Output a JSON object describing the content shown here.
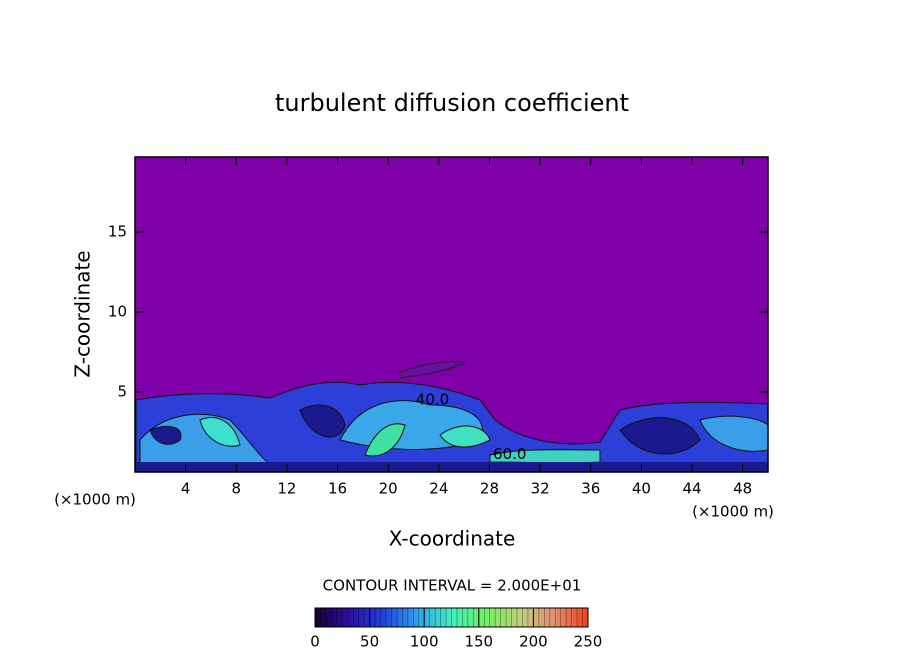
{
  "chart_data": {
    "type": "contour",
    "title": "turbulent diffusion coefficient",
    "x_label": "X-coordinate",
    "y_label": "Z-coordinate",
    "x_unit": "(×1000 m)",
    "y_unit": "(×1000 m)",
    "xlim": [
      0,
      50
    ],
    "xticks": [
      4,
      8,
      12,
      16,
      20,
      24,
      28,
      32,
      36,
      40,
      44,
      48
    ],
    "ylim": [
      0,
      19.7
    ],
    "yticks": [
      5,
      10,
      15
    ],
    "contour_interval": "CONTOUR INTERVAL = 2.000E+01",
    "contour_labels": [
      {
        "text": "40.0",
        "x": 23.5,
        "y": 4.5
      },
      {
        "text": "60.0",
        "x": 29.6,
        "y": 1.1
      }
    ],
    "clim": [
      0,
      250
    ],
    "cticks": [
      0,
      50,
      100,
      150,
      200,
      250
    ],
    "colormap": [
      "#1a0030",
      "#2a10a0",
      "#2040e0",
      "#30a0f0",
      "#40f0c0",
      "#70f060",
      "#c0d080",
      "#e09070",
      "#f04020"
    ],
    "background_color": "#7f00a8"
  }
}
